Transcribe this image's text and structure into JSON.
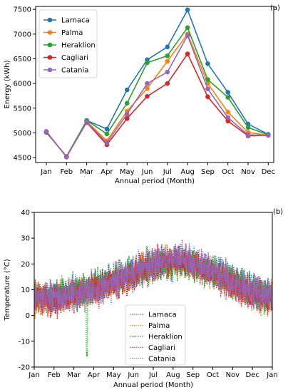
{
  "chart_data": [
    {
      "type": "line",
      "panel_label": "(a)",
      "xlabel": "Annual period (Month)",
      "ylabel": "Energy (kWh)",
      "ylim": [
        4400,
        7560
      ],
      "yticks": [
        4500,
        5000,
        5500,
        6000,
        6500,
        7000,
        7500
      ],
      "categories": [
        "Jan",
        "Feb",
        "Mar",
        "Apr",
        "May",
        "Jun",
        "Jul",
        "Aug",
        "Sep",
        "Oct",
        "Nov",
        "Dec"
      ],
      "legend_position": "top-left",
      "grid": false,
      "series": [
        {
          "name": "Larnaca",
          "color": "#1f77b4",
          "values": [
            5010,
            4520,
            5250,
            5080,
            5870,
            6480,
            6740,
            7490,
            6400,
            5820,
            5180,
            4970
          ]
        },
        {
          "name": "Palma",
          "color": "#ff7f0e",
          "values": [
            5020,
            4520,
            5230,
            4840,
            5440,
            5900,
            6450,
            7000,
            6000,
            5420,
            5010,
            4950
          ]
        },
        {
          "name": "Heraklion",
          "color": "#2ca02c",
          "values": [
            5020,
            4520,
            5250,
            4980,
            5600,
            6420,
            6560,
            7130,
            6080,
            5720,
            5110,
            4960
          ]
        },
        {
          "name": "Cagliari",
          "color": "#d62728",
          "values": [
            5020,
            4520,
            5210,
            4760,
            5290,
            5740,
            6000,
            6600,
            5730,
            5240,
            4940,
            4950
          ]
        },
        {
          "name": "Catania",
          "color": "#9467bd",
          "values": [
            5030,
            4510,
            5220,
            4800,
            5380,
            6000,
            6230,
            6970,
            5890,
            5310,
            4960,
            4950
          ]
        }
      ]
    },
    {
      "type": "line",
      "panel_label": "(b)",
      "xlabel": "Annual period (Month)",
      "ylabel": "Temperature (°C)",
      "ylim": [
        -20,
        40
      ],
      "yticks": [
        -20,
        -10,
        0,
        10,
        20,
        30,
        40
      ],
      "xticks": [
        "Jan",
        "Feb",
        "Mar",
        "Apr",
        "May",
        "Jun",
        "Jul",
        "Aug",
        "Sep",
        "Oct",
        "Nov",
        "Dec",
        "Jan"
      ],
      "line_style": "dotted",
      "legend_position": "lower-center",
      "grid": false,
      "series": [
        {
          "name": "Larnaca",
          "color": "#1f77b4",
          "mean_by_month": [
            7,
            8,
            10,
            12,
            15,
            18,
            20,
            21,
            19,
            16,
            12,
            8
          ],
          "amplitude": 7
        },
        {
          "name": "Palma",
          "color": "#ff7f0e",
          "mean_by_month": [
            6,
            7,
            9,
            11,
            14,
            18,
            21,
            21,
            18,
            15,
            10,
            7
          ],
          "amplitude": 7
        },
        {
          "name": "Heraklion",
          "color": "#2ca02c",
          "mean_by_month": [
            7,
            8,
            10,
            12,
            15,
            18,
            20,
            20,
            18,
            15,
            11,
            8
          ],
          "amplitude": 7,
          "dip": {
            "month_pos": 2.65,
            "value": -16
          }
        },
        {
          "name": "Cagliari",
          "color": "#d62728",
          "mean_by_month": [
            6,
            7,
            9,
            11,
            14,
            18,
            21,
            21,
            18,
            15,
            10,
            7
          ],
          "amplitude": 7
        },
        {
          "name": "Catania",
          "color": "#9467bd",
          "mean_by_month": [
            7,
            7,
            9,
            11,
            15,
            19,
            21,
            22,
            19,
            15,
            11,
            8
          ],
          "amplitude": 7,
          "spike": {
            "month_pos": 7.45,
            "value": 30
          }
        }
      ]
    }
  ]
}
